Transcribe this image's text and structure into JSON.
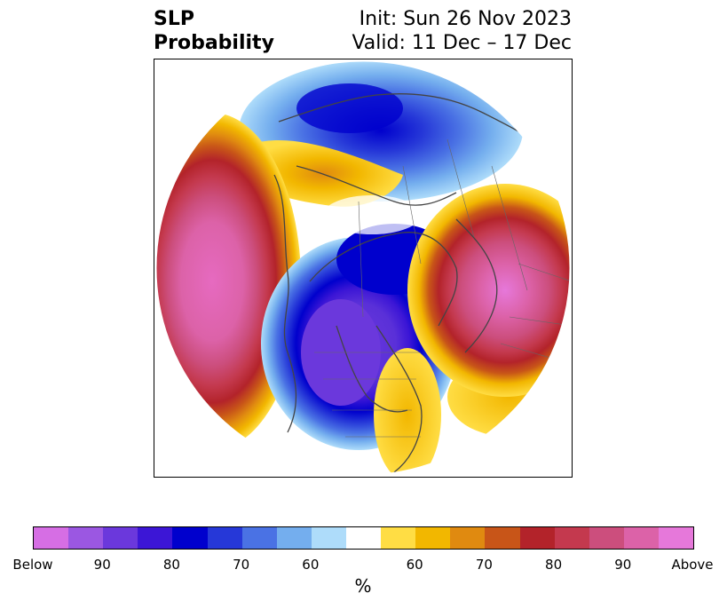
{
  "title": {
    "left_line1": "SLP",
    "left_line2": "Probability",
    "right_line1": "Init: Sun 26 Nov 2023",
    "right_line2": "Valid: 11 Dec – 17 Dec"
  },
  "colorbar": {
    "colors": [
      "#d66ee4",
      "#9b57e2",
      "#6b38dc",
      "#3c16d6",
      "#0000cd",
      "#2638d8",
      "#4a72e4",
      "#74aeee",
      "#aedcfa",
      "#ffffff",
      "#ffdd44",
      "#f2b700",
      "#e08a10",
      "#c85518",
      "#b3232a",
      "#c4394e",
      "#cc4e7d",
      "#dc62a8",
      "#e678da"
    ],
    "ticks": [
      "Below",
      "90",
      "80",
      "70",
      "60",
      "60",
      "70",
      "80",
      "90",
      "Above"
    ],
    "unit": "%"
  }
}
